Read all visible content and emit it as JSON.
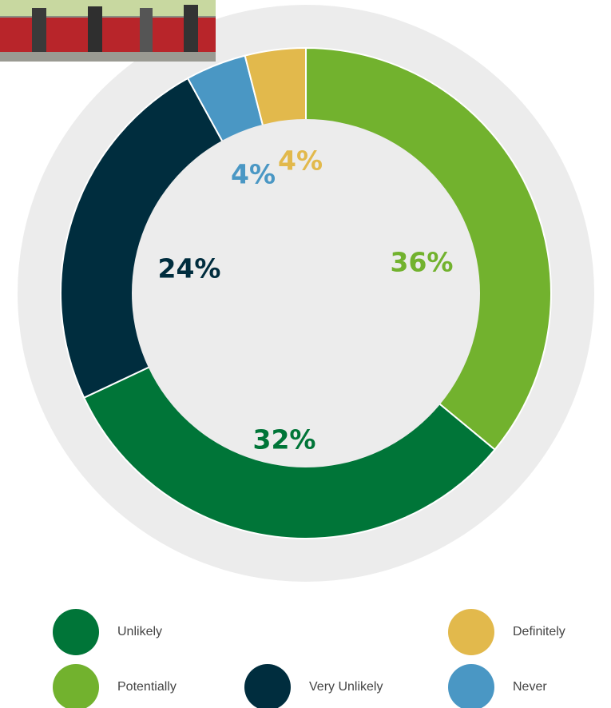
{
  "chart_data": {
    "type": "donut",
    "categories": [
      "Potentially",
      "Unlikely",
      "Very Unlikely",
      "Never",
      "Definitely"
    ],
    "values": [
      36,
      32,
      24,
      4,
      4
    ],
    "value_labels": [
      "36%",
      "32%",
      "24%",
      "4%",
      "4%"
    ],
    "colors": [
      "#72b22e",
      "#007538",
      "#002d3e",
      "#4a97c4",
      "#e2b94c"
    ]
  }
}
